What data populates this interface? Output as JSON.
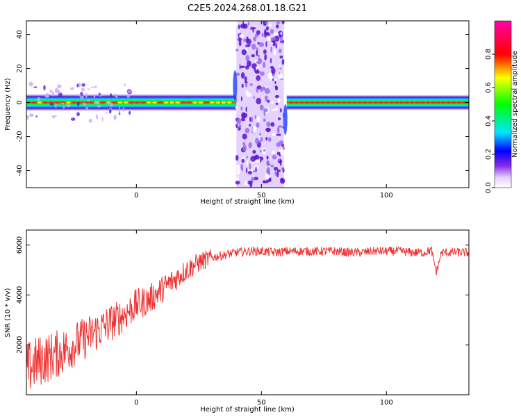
{
  "title": "C2E5.2024.268.01.18.G21",
  "chart_data": [
    {
      "type": "heatmap",
      "xlabel": "Height of straight line (km)",
      "ylabel": "Frequency (Hz)",
      "xlim": [
        -44,
        133
      ],
      "ylim": [
        -50,
        48
      ],
      "xticks": [
        0,
        50,
        100
      ],
      "yticks": [
        -40,
        -20,
        0,
        20,
        40
      ],
      "colorbar": {
        "label": "Normalized spectral amplitude",
        "range": [
          0.0,
          1.0
        ],
        "ticks": [
          "0.0",
          "0.2",
          "0.4",
          "0.6",
          "0.8"
        ],
        "colormap": "rainbow (white-violet-blue-cyan-green-yellow-red-magenta)"
      },
      "ridge_freq_hz": 0,
      "gap_km": [
        40,
        59
      ],
      "notes_visible": "strong ridge near 0 Hz across the height range, noisy violet band between ~40 and ~59 km"
    },
    {
      "type": "line",
      "xlabel": "Height of straight line (km)",
      "ylabel": "SNR (10 * v/v)",
      "xlim": [
        -44,
        133
      ],
      "ylim": [
        0,
        6600
      ],
      "xticks": [
        0,
        50,
        100
      ],
      "yticks": [
        2000,
        4000,
        6000
      ],
      "color": "#ee3333",
      "series": [
        {
          "x": [
            -44,
            -40,
            -35,
            -30,
            -25,
            -20,
            -15,
            -10,
            -5,
            0,
            5,
            10,
            15,
            20,
            25,
            30,
            35,
            40,
            45,
            50,
            55,
            60,
            65,
            70,
            75,
            80,
            85,
            90,
            95,
            100,
            105,
            110,
            115,
            118,
            120,
            122,
            125,
            130,
            133
          ],
          "y": [
            1000,
            1300,
            1500,
            1700,
            2000,
            2300,
            2600,
            2900,
            3200,
            3600,
            3800,
            4200,
            4600,
            5000,
            5300,
            5500,
            5600,
            5700,
            5750,
            5750,
            5700,
            5750,
            5750,
            5750,
            5750,
            5750,
            5700,
            5700,
            5750,
            5750,
            5750,
            5700,
            5700,
            5800,
            4900,
            5700,
            5700,
            5700,
            5700
          ]
        }
      ]
    }
  ]
}
